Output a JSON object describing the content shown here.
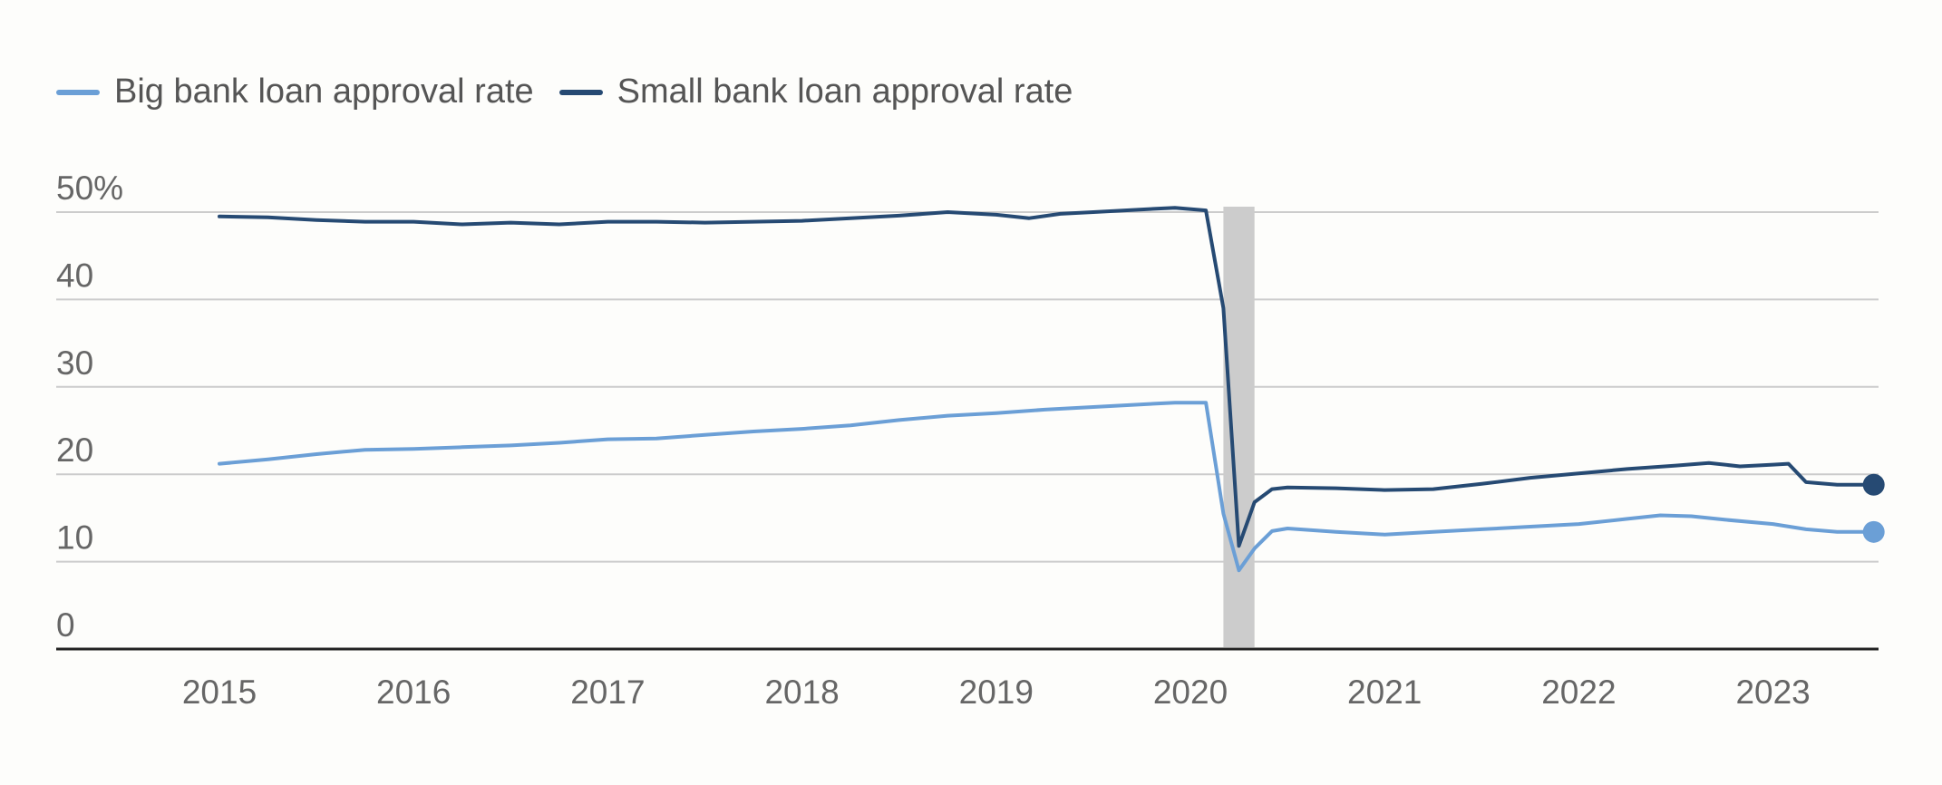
{
  "colors": {
    "big_bank": "#6b9fd6",
    "small_bank": "#264a73",
    "grid": "#cccccc",
    "axis": "#222222",
    "shade": "#cccccc",
    "background": "#fdfdfb"
  },
  "legend": {
    "big": "Big bank loan approval rate",
    "small": "Small bank loan approval rate"
  },
  "chart_data": {
    "type": "line",
    "xlim": [
      2015,
      2023.65
    ],
    "ylim": [
      0,
      50
    ],
    "y_ticks": [
      {
        "value": 50,
        "label": "50%"
      },
      {
        "value": 40,
        "label": "40"
      },
      {
        "value": 30,
        "label": "30"
      },
      {
        "value": 20,
        "label": "20"
      },
      {
        "value": 10,
        "label": "10"
      },
      {
        "value": 0,
        "label": "0"
      }
    ],
    "x_ticks": [
      {
        "value": 2015,
        "label": "2015"
      },
      {
        "value": 2016,
        "label": "2016"
      },
      {
        "value": 2017,
        "label": "2017"
      },
      {
        "value": 2018,
        "label": "2018"
      },
      {
        "value": 2019,
        "label": "2019"
      },
      {
        "value": 2020,
        "label": "2020"
      },
      {
        "value": 2021,
        "label": "2021"
      },
      {
        "value": 2022,
        "label": "2022"
      },
      {
        "value": 2023,
        "label": "2023"
      }
    ],
    "shaded_region": [
      2020.17,
      2020.33
    ],
    "grid": true,
    "legend_position": "top-left",
    "series": [
      {
        "name": "Big bank loan approval rate",
        "color_key": "big_bank",
        "end_marker": true,
        "points": [
          [
            2015.0,
            21.2
          ],
          [
            2015.25,
            21.7
          ],
          [
            2015.5,
            22.3
          ],
          [
            2015.75,
            22.8
          ],
          [
            2016.0,
            22.9
          ],
          [
            2016.25,
            23.1
          ],
          [
            2016.5,
            23.3
          ],
          [
            2016.75,
            23.6
          ],
          [
            2017.0,
            24.0
          ],
          [
            2017.25,
            24.1
          ],
          [
            2017.5,
            24.5
          ],
          [
            2017.75,
            24.9
          ],
          [
            2018.0,
            25.2
          ],
          [
            2018.25,
            25.6
          ],
          [
            2018.5,
            26.2
          ],
          [
            2018.75,
            26.7
          ],
          [
            2019.0,
            27.0
          ],
          [
            2019.25,
            27.4
          ],
          [
            2019.5,
            27.7
          ],
          [
            2019.75,
            28.0
          ],
          [
            2019.92,
            28.2
          ],
          [
            2020.08,
            28.2
          ],
          [
            2020.17,
            15.5
          ],
          [
            2020.25,
            9.0
          ],
          [
            2020.33,
            11.5
          ],
          [
            2020.42,
            13.5
          ],
          [
            2020.5,
            13.8
          ],
          [
            2020.75,
            13.4
          ],
          [
            2021.0,
            13.1
          ],
          [
            2021.25,
            13.4
          ],
          [
            2021.5,
            13.7
          ],
          [
            2021.75,
            14.0
          ],
          [
            2022.0,
            14.3
          ],
          [
            2022.25,
            14.9
          ],
          [
            2022.42,
            15.3
          ],
          [
            2022.58,
            15.2
          ],
          [
            2022.75,
            14.8
          ],
          [
            2023.0,
            14.3
          ],
          [
            2023.17,
            13.7
          ],
          [
            2023.33,
            13.4
          ],
          [
            2023.5,
            13.4
          ]
        ]
      },
      {
        "name": "Small bank loan approval rate",
        "color_key": "small_bank",
        "end_marker": true,
        "points": [
          [
            2015.0,
            49.5
          ],
          [
            2015.25,
            49.4
          ],
          [
            2015.5,
            49.1
          ],
          [
            2015.75,
            48.9
          ],
          [
            2016.0,
            48.9
          ],
          [
            2016.25,
            48.6
          ],
          [
            2016.5,
            48.8
          ],
          [
            2016.75,
            48.6
          ],
          [
            2017.0,
            48.9
          ],
          [
            2017.25,
            48.9
          ],
          [
            2017.5,
            48.8
          ],
          [
            2017.75,
            48.9
          ],
          [
            2018.0,
            49.0
          ],
          [
            2018.25,
            49.3
          ],
          [
            2018.5,
            49.6
          ],
          [
            2018.75,
            50.0
          ],
          [
            2019.0,
            49.7
          ],
          [
            2019.17,
            49.3
          ],
          [
            2019.33,
            49.8
          ],
          [
            2019.5,
            50.0
          ],
          [
            2019.75,
            50.3
          ],
          [
            2019.92,
            50.5
          ],
          [
            2020.08,
            50.2
          ],
          [
            2020.17,
            39.0
          ],
          [
            2020.25,
            11.8
          ],
          [
            2020.33,
            16.8
          ],
          [
            2020.42,
            18.3
          ],
          [
            2020.5,
            18.5
          ],
          [
            2020.75,
            18.4
          ],
          [
            2021.0,
            18.2
          ],
          [
            2021.25,
            18.3
          ],
          [
            2021.5,
            18.9
          ],
          [
            2021.75,
            19.6
          ],
          [
            2022.0,
            20.1
          ],
          [
            2022.25,
            20.6
          ],
          [
            2022.5,
            21.0
          ],
          [
            2022.67,
            21.3
          ],
          [
            2022.83,
            20.9
          ],
          [
            2023.0,
            21.1
          ],
          [
            2023.08,
            21.2
          ],
          [
            2023.17,
            19.1
          ],
          [
            2023.33,
            18.8
          ],
          [
            2023.5,
            18.8
          ]
        ]
      }
    ]
  }
}
